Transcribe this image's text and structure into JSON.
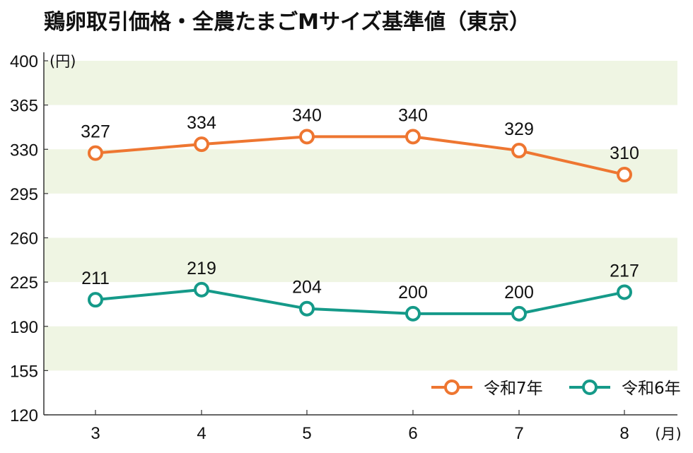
{
  "chart_data": {
    "type": "line",
    "title": "鶏卵取引価格・全農たまごMサイズ基準値（東京）",
    "ylabel": "(円)",
    "xlabel": "(月)",
    "categories": [
      "3",
      "4",
      "5",
      "6",
      "7",
      "8"
    ],
    "ylim": [
      120,
      400
    ],
    "yticks": [
      120,
      155,
      190,
      225,
      260,
      295,
      330,
      365,
      400
    ],
    "grid": "alternating horizontal bands",
    "legend_position": "bottom-right",
    "series": [
      {
        "name": "令和7年",
        "color": "#EE7631",
        "values": [
          327,
          334,
          340,
          340,
          329,
          310
        ]
      },
      {
        "name": "令和6年",
        "color": "#159A89",
        "values": [
          211,
          219,
          204,
          200,
          200,
          217
        ]
      }
    ],
    "band_color": "#EFF5E3"
  }
}
